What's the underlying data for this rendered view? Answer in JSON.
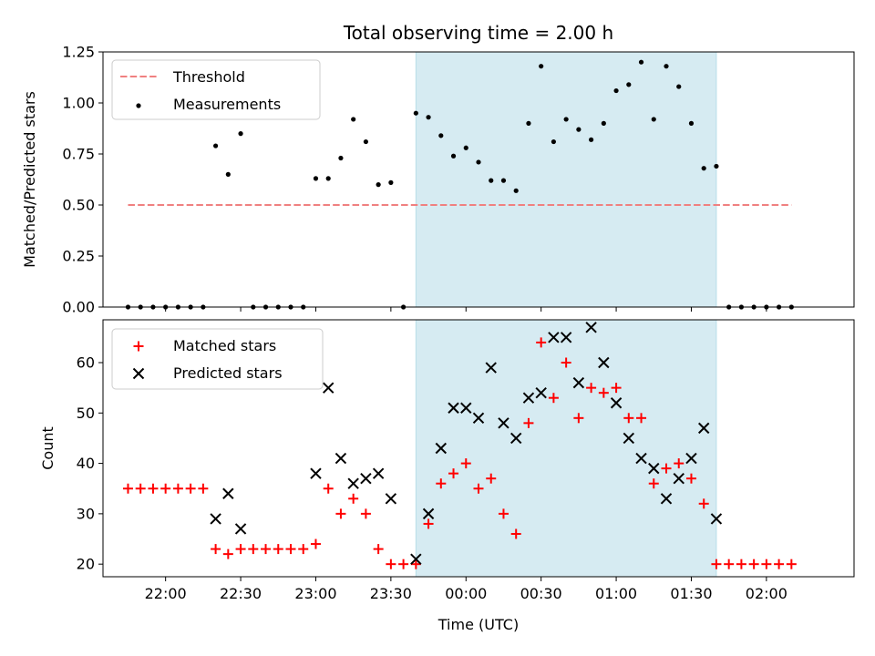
{
  "chart_data": {
    "type": "scatter",
    "title": "Total observing time = 2.00 h",
    "xlabel": "Time (UTC)",
    "x_tick_labels": [
      "22:00",
      "22:30",
      "23:00",
      "23:30",
      "00:00",
      "00:30",
      "01:00",
      "01:30",
      "02:00"
    ],
    "x_ticks": [
      "22:00",
      "22:30",
      "23:00",
      "23:30",
      "00:00",
      "00:30",
      "01:00",
      "01:30",
      "02:00"
    ],
    "xlim": [
      "21:35",
      "02:35"
    ],
    "shaded_interval": {
      "start": "23:40",
      "end": "01:40",
      "color": "#add8e6"
    },
    "top_panel": {
      "ylabel": "Matched/Predicted stars",
      "ylim": [
        0,
        1.25
      ],
      "y_tick_labels": [
        "0.00",
        "0.25",
        "0.50",
        "0.75",
        "1.00",
        "1.25"
      ],
      "y_ticks": [
        0,
        0.25,
        0.5,
        0.75,
        1.0,
        1.25
      ],
      "legend_position": "upper-left",
      "threshold": {
        "name": "Threshold",
        "value": 0.5,
        "x_start": "21:45",
        "x_end": "02:10",
        "color": "#f08080",
        "style": "dashed"
      },
      "measurements": {
        "name": "Measurements",
        "color": "#000000",
        "points": [
          {
            "x": "21:45",
            "y": 0
          },
          {
            "x": "21:50",
            "y": 0
          },
          {
            "x": "21:55",
            "y": 0
          },
          {
            "x": "22:00",
            "y": 0
          },
          {
            "x": "22:05",
            "y": 0
          },
          {
            "x": "22:10",
            "y": 0
          },
          {
            "x": "22:15",
            "y": 0
          },
          {
            "x": "22:20",
            "y": 0.79
          },
          {
            "x": "22:25",
            "y": 0.65
          },
          {
            "x": "22:30",
            "y": 0.85
          },
          {
            "x": "22:35",
            "y": 0
          },
          {
            "x": "22:40",
            "y": 0
          },
          {
            "x": "22:45",
            "y": 0
          },
          {
            "x": "22:50",
            "y": 0
          },
          {
            "x": "22:55",
            "y": 0
          },
          {
            "x": "23:00",
            "y": 0.63
          },
          {
            "x": "23:05",
            "y": 0.63
          },
          {
            "x": "23:10",
            "y": 0.73
          },
          {
            "x": "23:15",
            "y": 0.92
          },
          {
            "x": "23:20",
            "y": 0.81
          },
          {
            "x": "23:25",
            "y": 0.6
          },
          {
            "x": "23:30",
            "y": 0.61
          },
          {
            "x": "23:35",
            "y": 0
          },
          {
            "x": "23:40",
            "y": 0.95
          },
          {
            "x": "23:45",
            "y": 0.93
          },
          {
            "x": "23:50",
            "y": 0.84
          },
          {
            "x": "23:55",
            "y": 0.74
          },
          {
            "x": "00:00",
            "y": 0.78
          },
          {
            "x": "00:05",
            "y": 0.71
          },
          {
            "x": "00:10",
            "y": 0.62
          },
          {
            "x": "00:15",
            "y": 0.62
          },
          {
            "x": "00:20",
            "y": 0.57
          },
          {
            "x": "00:25",
            "y": 0.9
          },
          {
            "x": "00:30",
            "y": 1.18
          },
          {
            "x": "00:35",
            "y": 0.81
          },
          {
            "x": "00:40",
            "y": 0.92
          },
          {
            "x": "00:45",
            "y": 0.87
          },
          {
            "x": "00:50",
            "y": 0.82
          },
          {
            "x": "00:55",
            "y": 0.9
          },
          {
            "x": "01:00",
            "y": 1.06
          },
          {
            "x": "01:05",
            "y": 1.09
          },
          {
            "x": "01:10",
            "y": 1.2
          },
          {
            "x": "01:15",
            "y": 0.92
          },
          {
            "x": "01:20",
            "y": 1.18
          },
          {
            "x": "01:25",
            "y": 1.08
          },
          {
            "x": "01:30",
            "y": 0.9
          },
          {
            "x": "01:35",
            "y": 0.68
          },
          {
            "x": "01:40",
            "y": 0.69
          },
          {
            "x": "01:45",
            "y": 0
          },
          {
            "x": "01:50",
            "y": 0
          },
          {
            "x": "01:55",
            "y": 0
          },
          {
            "x": "02:00",
            "y": 0
          },
          {
            "x": "02:05",
            "y": 0
          },
          {
            "x": "02:10",
            "y": 0
          }
        ]
      }
    },
    "bottom_panel": {
      "ylabel": "Count",
      "ylim": [
        17.5,
        68.5
      ],
      "y_tick_labels": [
        "20",
        "30",
        "40",
        "50",
        "60"
      ],
      "y_ticks": [
        20,
        30,
        40,
        50,
        60
      ],
      "legend_position": "upper-left",
      "x": [
        "21:45",
        "21:50",
        "21:55",
        "22:00",
        "22:05",
        "22:10",
        "22:15",
        "22:20",
        "22:25",
        "22:30",
        "22:35",
        "22:40",
        "22:45",
        "22:50",
        "22:55",
        "23:00",
        "23:05",
        "23:10",
        "23:15",
        "23:20",
        "23:25",
        "23:30",
        "23:35",
        "23:40",
        "23:45",
        "23:50",
        "23:55",
        "00:00",
        "00:05",
        "00:10",
        "00:15",
        "00:20",
        "00:25",
        "00:30",
        "00:35",
        "00:40",
        "00:45",
        "00:50",
        "00:55",
        "01:00",
        "01:05",
        "01:10",
        "01:15",
        "01:20",
        "01:25",
        "01:30",
        "01:35",
        "01:40",
        "01:45",
        "01:50",
        "01:55",
        "02:00",
        "02:05",
        "02:10"
      ],
      "series": [
        {
          "name": "Matched stars",
          "marker": "plus",
          "color": "#ff0000",
          "values": [
            35,
            35,
            35,
            35,
            35,
            35,
            35,
            23,
            22,
            23,
            23,
            23,
            23,
            23,
            23,
            24,
            35,
            30,
            33,
            30,
            23,
            20,
            20,
            20,
            28,
            36,
            38,
            40,
            35,
            37,
            30,
            26,
            48,
            64,
            53,
            60,
            49,
            55,
            54,
            55,
            49,
            49,
            36,
            39,
            40,
            37,
            32,
            20,
            20,
            20,
            20,
            20,
            20,
            20
          ]
        },
        {
          "name": "Predicted stars",
          "marker": "x",
          "color": "#000000",
          "values": [
            null,
            null,
            null,
            null,
            null,
            null,
            null,
            29,
            34,
            27,
            null,
            null,
            null,
            null,
            null,
            38,
            55,
            41,
            36,
            37,
            38,
            33,
            null,
            21,
            30,
            43,
            51,
            51,
            49,
            59,
            48,
            45,
            53,
            54,
            65,
            65,
            56,
            67,
            60,
            52,
            45,
            41,
            39,
            33,
            37,
            41,
            47,
            29,
            null,
            null,
            null,
            null,
            null,
            null
          ]
        }
      ]
    }
  }
}
